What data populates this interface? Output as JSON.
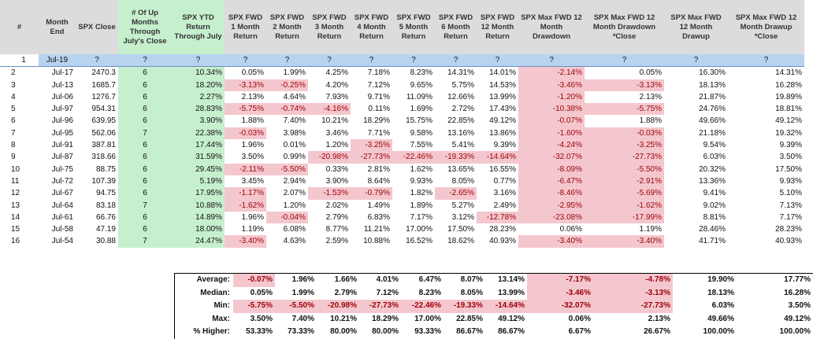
{
  "headers": [
    "#",
    "Month End",
    "SPX Close",
    "# Of Up Months Through July's Close",
    "SPX YTD Return Through July",
    "SPX FWD 1 Month Return",
    "SPX FWD 2 Month Return",
    "SPX FWD 3 Month Return",
    "SPX FWD 4 Month Return",
    "SPX FWD 5 Month Return",
    "SPX FWD 6 Month Return",
    "SPX FWD 12 Month Return",
    "SPX Max FWD 12 Month Drawdown",
    "SPX Max FWD 12 Month Drawdown *Close",
    "SPX Max FWD 12 Month Drawup",
    "SPX Max FWD 12 Month Drawup *Close"
  ],
  "rows": [
    [
      "1",
      "Jul-19",
      "?",
      "?",
      "?",
      "?",
      "?",
      "?",
      "?",
      "?",
      "?",
      "?",
      "?",
      "?",
      "?",
      "?"
    ],
    [
      "2",
      "Jul-17",
      "2470.3",
      "6",
      "10.34%",
      "0.05%",
      "1.99%",
      "4.25%",
      "7.18%",
      "8.23%",
      "14.31%",
      "14.01%",
      "-2.14%",
      "0.05%",
      "16.30%",
      "14.31%"
    ],
    [
      "3",
      "Jul-13",
      "1685.7",
      "6",
      "18.20%",
      "-3.13%",
      "-0.25%",
      "4.20%",
      "7.12%",
      "9.65%",
      "5.75%",
      "14.53%",
      "-3.46%",
      "-3.13%",
      "18.13%",
      "16.28%"
    ],
    [
      "4",
      "Jul-06",
      "1276.7",
      "6",
      "2.27%",
      "2.13%",
      "4.64%",
      "7.93%",
      "9.71%",
      "11.09%",
      "12.66%",
      "13.99%",
      "-1.20%",
      "2.13%",
      "21.87%",
      "19.89%"
    ],
    [
      "5",
      "Jul-97",
      "954.31",
      "6",
      "28.83%",
      "-5.75%",
      "-0.74%",
      "-4.16%",
      "0.11%",
      "1.69%",
      "2.72%",
      "17.43%",
      "-10.38%",
      "-5.75%",
      "24.76%",
      "18.81%"
    ],
    [
      "6",
      "Jul-96",
      "639.95",
      "6",
      "3.90%",
      "1.88%",
      "7.40%",
      "10.21%",
      "18.29%",
      "15.75%",
      "22.85%",
      "49.12%",
      "-0.07%",
      "1.88%",
      "49.66%",
      "49.12%"
    ],
    [
      "7",
      "Jul-95",
      "562.06",
      "7",
      "22.38%",
      "-0.03%",
      "3.98%",
      "3.46%",
      "7.71%",
      "9.58%",
      "13.16%",
      "13.86%",
      "-1.60%",
      "-0.03%",
      "21.18%",
      "19.32%"
    ],
    [
      "8",
      "Jul-91",
      "387.81",
      "6",
      "17.44%",
      "1.96%",
      "0.01%",
      "1.20%",
      "-3.25%",
      "7.55%",
      "5.41%",
      "9.39%",
      "-4.24%",
      "-3.25%",
      "9.54%",
      "9.39%"
    ],
    [
      "9",
      "Jul-87",
      "318.66",
      "6",
      "31.59%",
      "3.50%",
      "0.99%",
      "-20.98%",
      "-27.73%",
      "-22.46%",
      "-19.33%",
      "-14.64%",
      "-32.07%",
      "-27.73%",
      "6.03%",
      "3.50%"
    ],
    [
      "10",
      "Jul-75",
      "88.75",
      "6",
      "29.45%",
      "-2.11%",
      "-5.50%",
      "0.33%",
      "2.81%",
      "1.62%",
      "13.65%",
      "16.55%",
      "-8.09%",
      "-5.50%",
      "20.32%",
      "17.50%"
    ],
    [
      "11",
      "Jul-72",
      "107.39",
      "6",
      "5.19%",
      "3.45%",
      "2.94%",
      "3.90%",
      "8.64%",
      "9.93%",
      "8.05%",
      "0.77%",
      "-6.47%",
      "-2.91%",
      "13.36%",
      "9.93%"
    ],
    [
      "12",
      "Jul-67",
      "94.75",
      "6",
      "17.95%",
      "-1.17%",
      "2.07%",
      "-1.53%",
      "-0.79%",
      "1.82%",
      "-2.65%",
      "3.16%",
      "-8.46%",
      "-5.69%",
      "9.41%",
      "5.10%"
    ],
    [
      "13",
      "Jul-64",
      "83.18",
      "7",
      "10.88%",
      "-1.62%",
      "1.20%",
      "2.02%",
      "1.49%",
      "1.89%",
      "5.27%",
      "2.49%",
      "-2.95%",
      "-1.62%",
      "9.02%",
      "7.13%"
    ],
    [
      "14",
      "Jul-61",
      "66.76",
      "6",
      "14.89%",
      "1.96%",
      "-0.04%",
      "2.79%",
      "6.83%",
      "7.17%",
      "3.12%",
      "-12.78%",
      "-23.08%",
      "-17.99%",
      "8.81%",
      "7.17%"
    ],
    [
      "15",
      "Jul-58",
      "47.19",
      "6",
      "18.00%",
      "1.19%",
      "6.08%",
      "8.77%",
      "11.21%",
      "17.00%",
      "17.50%",
      "28.23%",
      "0.06%",
      "1.19%",
      "28.46%",
      "28.23%"
    ],
    [
      "16",
      "Jul-54",
      "30.88",
      "7",
      "24.47%",
      "-3.40%",
      "4.63%",
      "2.59%",
      "10.88%",
      "16.52%",
      "18.62%",
      "40.93%",
      "-3.40%",
      "-3.40%",
      "41.71%",
      "40.93%"
    ]
  ],
  "summary": [
    [
      "Average:",
      "-0.07%",
      "1.96%",
      "1.66%",
      "4.01%",
      "6.47%",
      "8.07%",
      "13.14%",
      "-7.17%",
      "-4.78%",
      "19.90%",
      "17.77%"
    ],
    [
      "Median:",
      "0.05%",
      "1.99%",
      "2.79%",
      "7.12%",
      "8.23%",
      "8.05%",
      "13.99%",
      "-3.46%",
      "-3.13%",
      "18.13%",
      "16.28%"
    ],
    [
      "Min:",
      "-5.75%",
      "-5.50%",
      "-20.98%",
      "-27.73%",
      "-22.46%",
      "-19.33%",
      "-14.64%",
      "-32.07%",
      "-27.73%",
      "6.03%",
      "3.50%"
    ],
    [
      "Max:",
      "3.50%",
      "7.40%",
      "10.21%",
      "18.29%",
      "17.00%",
      "22.85%",
      "49.12%",
      "0.06%",
      "2.13%",
      "49.66%",
      "49.12%"
    ],
    [
      "% Higher:",
      "53.33%",
      "73.33%",
      "80.00%",
      "80.00%",
      "93.33%",
      "86.67%",
      "86.67%",
      "6.67%",
      "26.67%",
      "100.00%",
      "100.00%"
    ]
  ],
  "colors": {
    "header_bg": "#dcdcdc",
    "green_fill": "#c6efce",
    "red_fill": "#f4c7ce",
    "red_text": "#9c0006",
    "first_row_fill": "#b8d3f0"
  }
}
